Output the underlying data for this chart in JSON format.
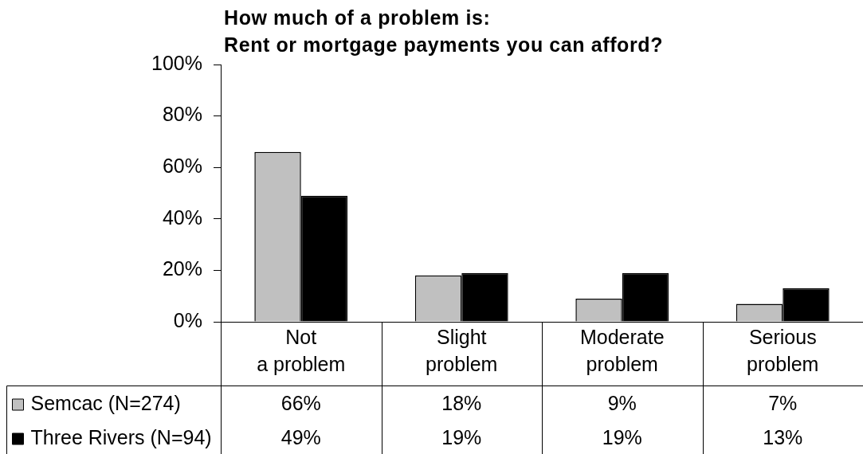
{
  "chart_data": {
    "type": "bar",
    "title": "How much of a problem is:\nRent or mortgage payments you can afford?",
    "categories": [
      "Not a problem",
      "Slight problem",
      "Moderate problem",
      "Serious problem"
    ],
    "series": [
      {
        "name": "Semcac (N=274)",
        "color": "#c0c0c0",
        "values": [
          66,
          18,
          9,
          7
        ],
        "value_labels": [
          "66%",
          "18%",
          "9%",
          "7%"
        ]
      },
      {
        "name": "Three Rivers (N=94)",
        "color": "#000000",
        "values": [
          49,
          19,
          19,
          13
        ],
        "value_labels": [
          "49%",
          "19%",
          "19%",
          "13%"
        ]
      }
    ],
    "ylim": [
      0,
      100
    ],
    "yticks": [
      {
        "value": 0,
        "label": "0%"
      },
      {
        "value": 20,
        "label": "20%"
      },
      {
        "value": 40,
        "label": "40%"
      },
      {
        "value": 60,
        "label": "60%"
      },
      {
        "value": 80,
        "label": "80%"
      },
      {
        "value": 100,
        "label": "100%"
      }
    ],
    "legend": "bottom left"
  }
}
